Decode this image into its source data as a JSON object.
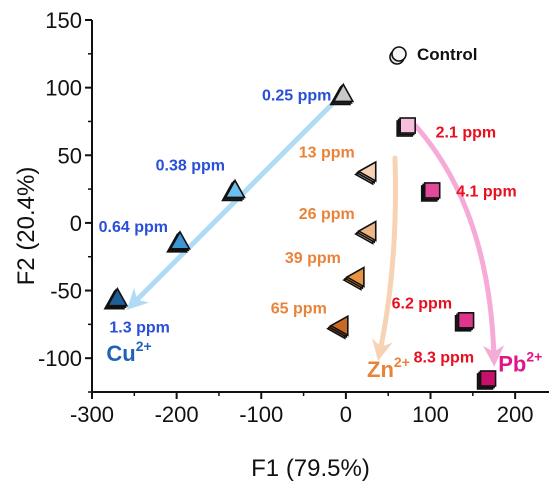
{
  "chart_data": {
    "type": "scatter",
    "title": "",
    "xlabel": "F1 (79.5%)",
    "ylabel": "F2 (20.4%)",
    "xlim": [
      -300,
      240
    ],
    "ylim": [
      -125,
      150
    ],
    "x_ticks": [
      -300,
      -200,
      -100,
      0,
      100,
      200
    ],
    "y_ticks": [
      -100,
      -50,
      0,
      50,
      100,
      150
    ],
    "grid": false,
    "legend": {
      "position": "top-right",
      "label": "Control"
    },
    "series": [
      {
        "name": "Control",
        "marker": "circle",
        "color": "#e6e6e6",
        "points": [
          {
            "x": -2,
            "y": 96
          },
          {
            "x": -1,
            "y": 95
          }
        ]
      },
      {
        "name": "Cu",
        "ion_label": "Cu",
        "ion_charge": "2+",
        "marker": "triangle-up",
        "color": "#3a8fd0",
        "arrow_color": "#a9d8f5",
        "points": [
          {
            "x": -3,
            "y": 95,
            "label": "0.25 ppm",
            "color": "#c8c8c8"
          },
          {
            "x": -131,
            "y": 24,
            "label": "0.38 ppm",
            "color": "#6cc0ea"
          },
          {
            "x": -196,
            "y": -14,
            "label": "0.64 ppm",
            "color": "#3d96d4"
          },
          {
            "x": -270,
            "y": -56,
            "label": "1.3 ppm",
            "color": "#1f5f97"
          }
        ]
      },
      {
        "name": "Zn",
        "ion_label": "Zn",
        "ion_charge": "2+",
        "marker": "triangle-left",
        "color": "#e8833a",
        "arrow_color": "#f6cfae",
        "points": [
          {
            "x": 27,
            "y": 38,
            "label": "13 ppm",
            "color": "#f7d2b5"
          },
          {
            "x": 27,
            "y": -6,
            "label": "26 ppm",
            "color": "#efb685"
          },
          {
            "x": 13,
            "y": -40,
            "label": "39 ppm",
            "color": "#e8933f"
          },
          {
            "x": -6,
            "y": -76,
            "label": "65 ppm",
            "color": "#c76a22"
          }
        ]
      },
      {
        "name": "Pb",
        "ion_label": "Pb",
        "ion_charge": "2+",
        "marker": "square",
        "color": "#e02b8a",
        "arrow_color": "#f4a3d2",
        "points": [
          {
            "x": 73,
            "y": 72,
            "label": "2.1 ppm",
            "color": "#f8bfdc"
          },
          {
            "x": 102,
            "y": 24,
            "label": "4.1 ppm",
            "color": "#e04a98"
          },
          {
            "x": 142,
            "y": -72,
            "label": "6.2 ppm",
            "color": "#e0358d"
          },
          {
            "x": 168,
            "y": -115,
            "label": "8.3 ppm",
            "color": "#c7106b"
          }
        ]
      }
    ],
    "colors": {
      "cu_label": "#2a4fd8",
      "cu_ion": "#1f63b8",
      "zn_label": "#e8833a",
      "pb_label": "#e8101f",
      "pb_ion": "#e0158a"
    }
  }
}
